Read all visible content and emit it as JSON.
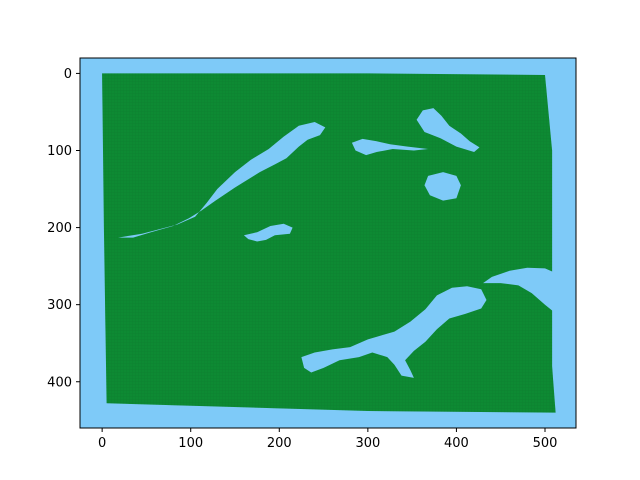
{
  "figure": {
    "x_axis": {
      "range": [
        -25,
        535
      ],
      "ticks": [
        0,
        100,
        200,
        300,
        400,
        500
      ]
    },
    "y_axis": {
      "range": [
        460,
        -20
      ],
      "inverted": true,
      "ticks": [
        0,
        100,
        200,
        300,
        400
      ]
    }
  },
  "map": {
    "water_color": "#7ecaf8",
    "land_color": "#0d8a33",
    "grid_line_color": "#0a6b28",
    "land_polygon": [
      [
        0,
        0
      ],
      [
        300,
        0
      ],
      [
        500,
        2
      ],
      [
        508,
        100
      ],
      [
        508,
        380
      ],
      [
        512,
        440
      ],
      [
        300,
        438
      ],
      [
        5,
        428
      ],
      [
        2,
        200
      ]
    ],
    "lakes": [
      {
        "id": "long-lake-west",
        "points": [
          [
            18,
            213
          ],
          [
            45,
            208
          ],
          [
            85,
            196
          ],
          [
            105,
            186
          ],
          [
            118,
            168
          ],
          [
            130,
            150
          ],
          [
            150,
            128
          ],
          [
            168,
            112
          ],
          [
            188,
            98
          ],
          [
            205,
            82
          ],
          [
            222,
            68
          ],
          [
            240,
            63
          ],
          [
            252,
            70
          ],
          [
            246,
            80
          ],
          [
            232,
            86
          ],
          [
            222,
            95
          ],
          [
            208,
            110
          ],
          [
            195,
            118
          ],
          [
            178,
            128
          ],
          [
            150,
            148
          ],
          [
            128,
            165
          ],
          [
            112,
            178
          ],
          [
            98,
            188
          ],
          [
            80,
            198
          ],
          [
            55,
            206
          ],
          [
            35,
            213
          ]
        ]
      },
      {
        "id": "mid-small-lake",
        "points": [
          [
            160,
            210
          ],
          [
            175,
            206
          ],
          [
            190,
            198
          ],
          [
            205,
            195
          ],
          [
            215,
            200
          ],
          [
            212,
            208
          ],
          [
            195,
            210
          ],
          [
            185,
            216
          ],
          [
            175,
            218
          ],
          [
            165,
            215
          ]
        ]
      },
      {
        "id": "channel-lake",
        "points": [
          [
            282,
            90
          ],
          [
            294,
            85
          ],
          [
            310,
            88
          ],
          [
            325,
            92
          ],
          [
            345,
            95
          ],
          [
            368,
            98
          ],
          [
            352,
            100
          ],
          [
            328,
            98
          ],
          [
            310,
            102
          ],
          [
            298,
            106
          ],
          [
            286,
            100
          ]
        ]
      },
      {
        "id": "north-lake",
        "points": [
          [
            355,
            60
          ],
          [
            362,
            48
          ],
          [
            374,
            45
          ],
          [
            383,
            55
          ],
          [
            392,
            68
          ],
          [
            405,
            78
          ],
          [
            415,
            88
          ],
          [
            426,
            96
          ],
          [
            420,
            102
          ],
          [
            400,
            95
          ],
          [
            382,
            84
          ],
          [
            364,
            76
          ]
        ]
      },
      {
        "id": "round-lake",
        "points": [
          [
            368,
            133
          ],
          [
            385,
            128
          ],
          [
            400,
            133
          ],
          [
            405,
            145
          ],
          [
            400,
            162
          ],
          [
            385,
            165
          ],
          [
            370,
            158
          ],
          [
            364,
            145
          ]
        ]
      },
      {
        "id": "east-shore-lake",
        "points": [
          [
            430,
            272
          ],
          [
            440,
            264
          ],
          [
            460,
            256
          ],
          [
            480,
            252
          ],
          [
            500,
            253
          ],
          [
            510,
            258
          ],
          [
            512,
            270
          ],
          [
            520,
            290
          ],
          [
            522,
            310
          ],
          [
            515,
            314
          ],
          [
            500,
            300
          ],
          [
            485,
            285
          ],
          [
            470,
            275
          ],
          [
            450,
            272
          ]
        ]
      },
      {
        "id": "south-lake",
        "points": [
          [
            225,
            368
          ],
          [
            240,
            362
          ],
          [
            260,
            358
          ],
          [
            280,
            355
          ],
          [
            300,
            345
          ],
          [
            330,
            335
          ],
          [
            348,
            322
          ],
          [
            365,
            306
          ],
          [
            378,
            288
          ],
          [
            395,
            278
          ],
          [
            412,
            276
          ],
          [
            428,
            280
          ],
          [
            434,
            294
          ],
          [
            428,
            305
          ],
          [
            410,
            312
          ],
          [
            392,
            318
          ],
          [
            378,
            332
          ],
          [
            365,
            348
          ],
          [
            352,
            360
          ],
          [
            342,
            372
          ],
          [
            348,
            385
          ],
          [
            352,
            395
          ],
          [
            338,
            392
          ],
          [
            330,
            378
          ],
          [
            322,
            368
          ],
          [
            305,
            362
          ],
          [
            290,
            368
          ],
          [
            268,
            372
          ],
          [
            250,
            382
          ],
          [
            236,
            388
          ],
          [
            228,
            382
          ]
        ]
      }
    ]
  }
}
